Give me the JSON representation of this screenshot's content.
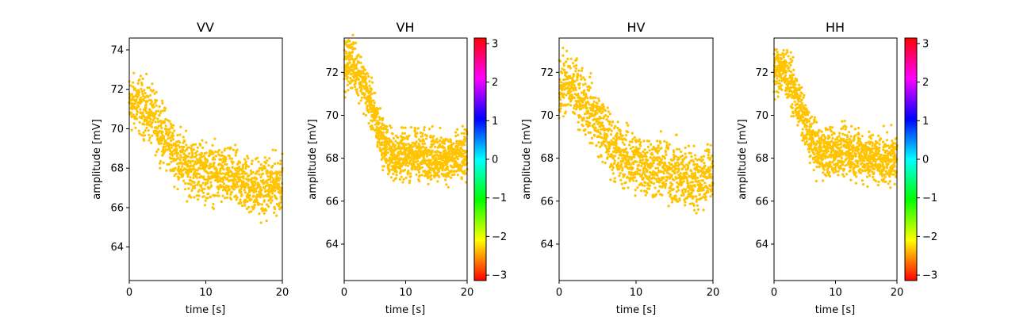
{
  "chart_data": [
    {
      "type": "scatter",
      "title": "VV",
      "xlabel": "time [s]",
      "ylabel": "amplitude [mV]",
      "xlim": [
        0,
        20
      ],
      "ylim": [
        62.3,
        74.6
      ],
      "xticks": [
        0,
        10,
        20
      ],
      "yticks": [
        64,
        66,
        68,
        70,
        72,
        74
      ],
      "marker_color": "#ffc300",
      "colorbar": false,
      "trend": [
        [
          0,
          71.2
        ],
        [
          1,
          71.3
        ],
        [
          2,
          71.0
        ],
        [
          3,
          70.6
        ],
        [
          4,
          70.0
        ],
        [
          5,
          69.4
        ],
        [
          6,
          68.8
        ],
        [
          7,
          68.3
        ],
        [
          8,
          68.0
        ],
        [
          9,
          67.9
        ],
        [
          10,
          67.8
        ],
        [
          12,
          67.6
        ],
        [
          14,
          67.4
        ],
        [
          16,
          67.1
        ],
        [
          17,
          67.0
        ],
        [
          18,
          67.0
        ],
        [
          19,
          67.2
        ],
        [
          20,
          67.3
        ]
      ],
      "spread": 0.7
    },
    {
      "type": "scatter",
      "title": "VH",
      "xlabel": "time [s]",
      "ylabel": "amplitude [mV]",
      "xlim": [
        0,
        20
      ],
      "ylim": [
        62.3,
        73.6
      ],
      "xticks": [
        0,
        10,
        20
      ],
      "yticks": [
        64,
        66,
        68,
        70,
        72
      ],
      "marker_color": "#ffc300",
      "colorbar": true,
      "trend": [
        [
          0,
          72.2
        ],
        [
          1,
          72.5
        ],
        [
          2,
          72.2
        ],
        [
          3,
          71.6
        ],
        [
          4,
          70.8
        ],
        [
          5,
          69.9
        ],
        [
          6,
          69.0
        ],
        [
          7,
          68.4
        ],
        [
          8,
          68.1
        ],
        [
          9,
          68.1
        ],
        [
          10,
          68.1
        ],
        [
          12,
          68.2
        ],
        [
          14,
          68.1
        ],
        [
          16,
          68.0
        ],
        [
          18,
          68.0
        ],
        [
          20,
          68.1
        ]
      ],
      "spread": 0.55
    },
    {
      "type": "scatter",
      "title": "HV",
      "xlabel": "time [s]",
      "ylabel": "amplitude [mV]",
      "xlim": [
        0,
        20
      ],
      "ylim": [
        62.3,
        73.6
      ],
      "xticks": [
        0,
        10,
        20
      ],
      "yticks": [
        64,
        66,
        68,
        70,
        72
      ],
      "marker_color": "#ffc300",
      "colorbar": false,
      "trend": [
        [
          0,
          71.4
        ],
        [
          1,
          71.4
        ],
        [
          2,
          71.2
        ],
        [
          3,
          70.8
        ],
        [
          4,
          70.3
        ],
        [
          5,
          69.7
        ],
        [
          6,
          69.1
        ],
        [
          7,
          68.5
        ],
        [
          8,
          68.1
        ],
        [
          9,
          67.9
        ],
        [
          10,
          67.8
        ],
        [
          12,
          67.6
        ],
        [
          14,
          67.4
        ],
        [
          15,
          67.3
        ],
        [
          16,
          67.1
        ],
        [
          17,
          67.1
        ],
        [
          18,
          67.0
        ],
        [
          19,
          67.2
        ],
        [
          20,
          67.3
        ]
      ],
      "spread": 0.7
    },
    {
      "type": "scatter",
      "title": "HH",
      "xlabel": "time [s]",
      "ylabel": "amplitude [mV]",
      "xlim": [
        0,
        20
      ],
      "ylim": [
        62.3,
        73.6
      ],
      "xticks": [
        0,
        10,
        20
      ],
      "yticks": [
        64,
        66,
        68,
        70,
        72
      ],
      "marker_color": "#ffc300",
      "colorbar": true,
      "trend": [
        [
          0,
          72.0
        ],
        [
          1,
          72.2
        ],
        [
          2,
          71.9
        ],
        [
          3,
          71.3
        ],
        [
          4,
          70.5
        ],
        [
          5,
          69.6
        ],
        [
          6,
          68.9
        ],
        [
          7,
          68.4
        ],
        [
          8,
          68.3
        ],
        [
          9,
          68.3
        ],
        [
          10,
          68.3
        ],
        [
          12,
          68.3
        ],
        [
          14,
          68.2
        ],
        [
          16,
          68.0
        ],
        [
          18,
          67.9
        ],
        [
          20,
          68.0
        ]
      ],
      "spread": 0.55
    }
  ],
  "colorbar": {
    "range": [
      -3.14159,
      3.14159
    ],
    "ticks": [
      "3",
      "2",
      "1",
      "0",
      "−1",
      "−2",
      "−3"
    ],
    "tick_values": [
      3,
      2,
      1,
      0,
      -1,
      -2,
      -3
    ],
    "colormap": "hsv"
  }
}
